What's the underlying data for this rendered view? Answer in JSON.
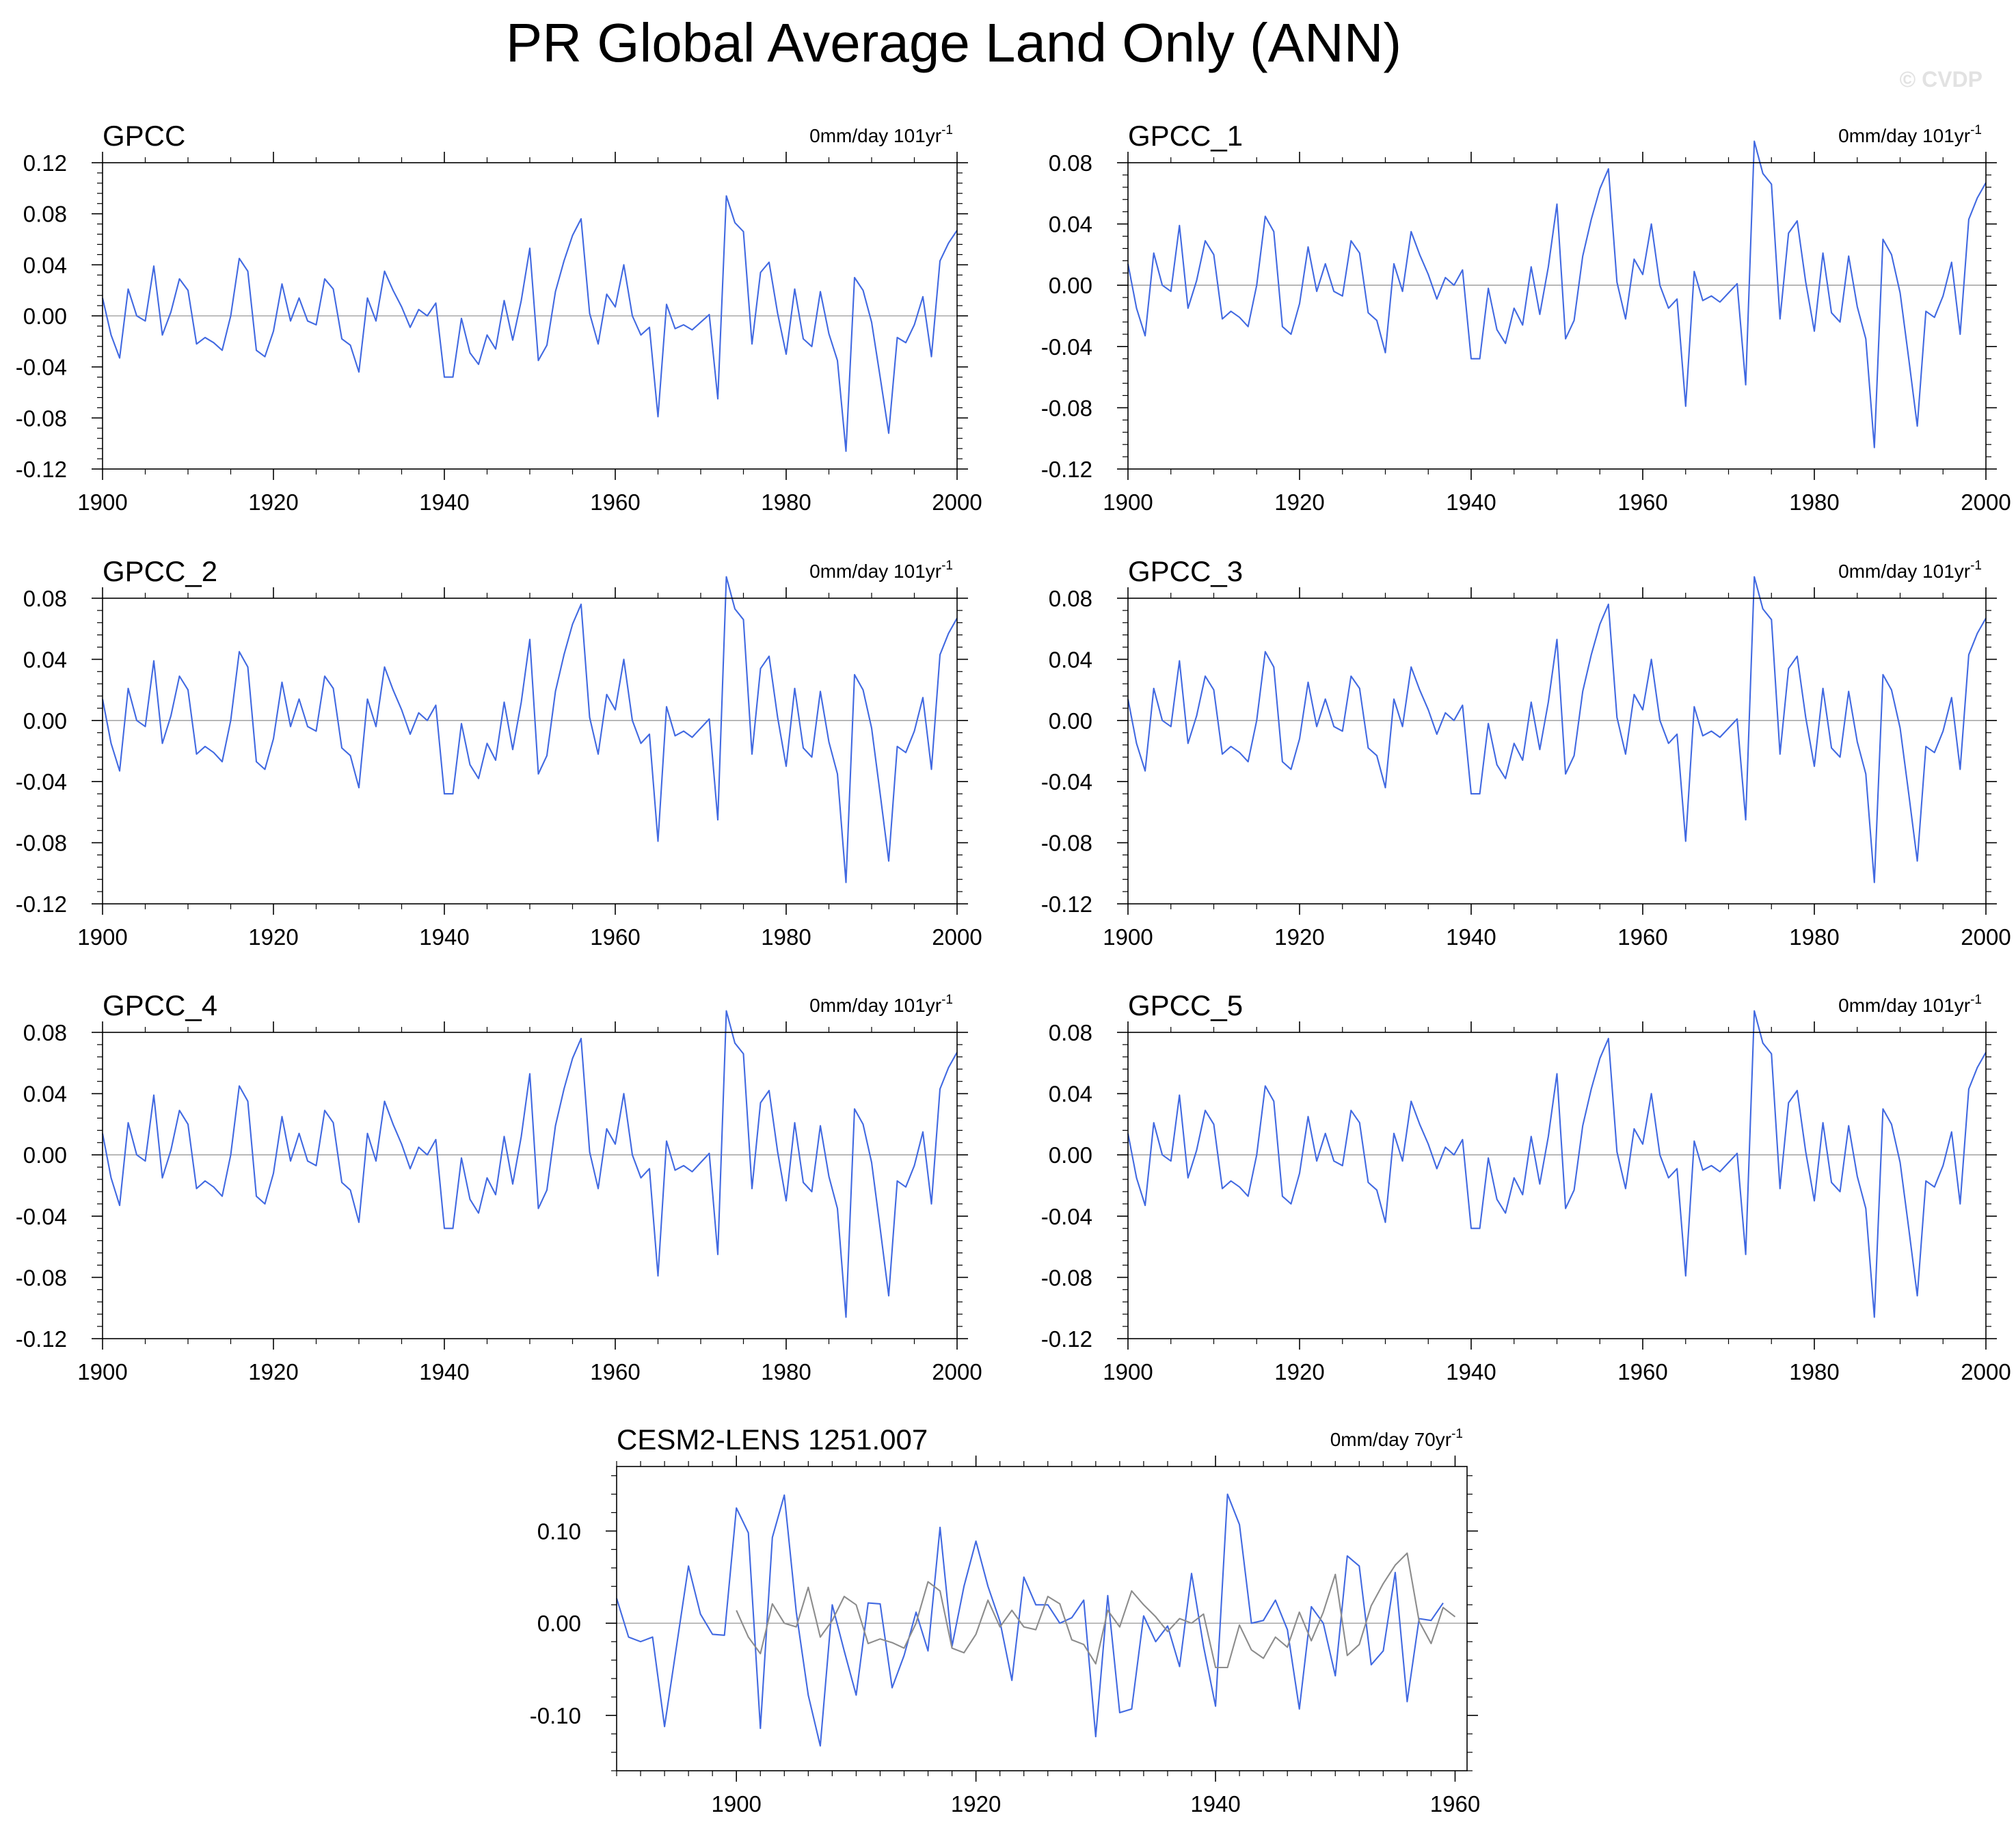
{
  "figure": {
    "title": "PR Global Average Land Only (ANN)",
    "watermark": "© CVDP",
    "colors": {
      "primary_series": "#4169e1",
      "secondary_series": "#8c8c8c",
      "zero_line": "#a8a8a8"
    }
  },
  "chart_data": [
    {
      "type": "line",
      "title": "GPCC",
      "trend_label": "0mm/day 101yr",
      "trend_label_superscript": "-1",
      "xlim": [
        1900,
        2000
      ],
      "ylim": [
        -0.12,
        0.12
      ],
      "x_ticks": [
        1900,
        1920,
        1940,
        1960,
        1980,
        2000
      ],
      "y_ticks": [
        -0.12,
        -0.08,
        -0.04,
        0.0,
        0.04,
        0.08,
        0.12
      ],
      "y_tick_labels": [
        "-0.12",
        "-0.08",
        "-0.04",
        "0.00",
        "0.04",
        "0.08",
        "0.12"
      ],
      "series": [
        {
          "x_start": 1900,
          "values": [
            0.014,
            -0.015,
            -0.033,
            0.021,
            0.0,
            -0.004,
            0.039,
            -0.015,
            0.003,
            0.029,
            0.02,
            -0.022,
            -0.017,
            -0.021,
            -0.027,
            0.0,
            0.045,
            0.035,
            -0.027,
            -0.032,
            -0.012,
            0.025,
            -0.004,
            0.014,
            -0.004,
            -0.007,
            0.029,
            0.021,
            -0.018,
            -0.023,
            -0.044,
            0.014,
            -0.004,
            0.035,
            0.02,
            0.007,
            -0.009,
            0.005,
            0.0,
            0.01,
            -0.048,
            -0.048,
            -0.002,
            -0.029,
            -0.038,
            -0.015,
            -0.026,
            0.012,
            -0.019,
            0.012,
            0.053,
            -0.035,
            -0.023,
            0.019,
            0.043,
            0.063,
            0.076,
            0.002,
            -0.022,
            0.017,
            0.007,
            0.04,
            0.0,
            -0.015,
            -0.009,
            -0.079,
            0.009,
            -0.01,
            -0.007,
            -0.011,
            -0.005,
            0.001,
            -0.065,
            0.094,
            0.073,
            0.066,
            -0.022,
            0.034,
            0.042,
            0.002,
            -0.03,
            0.021,
            -0.018,
            -0.024,
            0.019,
            -0.014,
            -0.035,
            -0.106,
            0.03,
            0.02,
            -0.005,
            -0.048,
            -0.092,
            -0.017,
            -0.021,
            -0.007,
            0.015,
            -0.032,
            0.043,
            0.057,
            0.067
          ]
        }
      ]
    },
    {
      "type": "line",
      "title": "GPCC_1",
      "trend_label": "0mm/day 101yr",
      "trend_label_superscript": "-1",
      "xlim": [
        1900,
        2000
      ],
      "ylim": [
        -0.12,
        0.08
      ],
      "x_ticks": [
        1900,
        1920,
        1940,
        1960,
        1980,
        2000
      ],
      "y_ticks": [
        -0.12,
        -0.08,
        -0.04,
        0.0,
        0.04,
        0.08
      ],
      "y_tick_labels": [
        "-0.12",
        "-0.08",
        "-0.04",
        "0.00",
        "0.04",
        "0.08"
      ],
      "series": [
        {
          "x_start": 1900,
          "values": [
            0.014,
            -0.015,
            -0.033,
            0.021,
            0.0,
            -0.004,
            0.039,
            -0.015,
            0.003,
            0.029,
            0.02,
            -0.022,
            -0.017,
            -0.021,
            -0.027,
            0.0,
            0.045,
            0.035,
            -0.027,
            -0.032,
            -0.012,
            0.025,
            -0.004,
            0.014,
            -0.004,
            -0.007,
            0.029,
            0.021,
            -0.018,
            -0.023,
            -0.044,
            0.014,
            -0.004,
            0.035,
            0.02,
            0.007,
            -0.009,
            0.005,
            0.0,
            0.01,
            -0.048,
            -0.048,
            -0.002,
            -0.029,
            -0.038,
            -0.015,
            -0.026,
            0.012,
            -0.019,
            0.012,
            0.053,
            -0.035,
            -0.023,
            0.019,
            0.043,
            0.063,
            0.076,
            0.002,
            -0.022,
            0.017,
            0.007,
            0.04,
            0.0,
            -0.015,
            -0.009,
            -0.079,
            0.009,
            -0.01,
            -0.007,
            -0.011,
            -0.005,
            0.001,
            -0.065,
            0.094,
            0.073,
            0.066,
            -0.022,
            0.034,
            0.042,
            0.002,
            -0.03,
            0.021,
            -0.018,
            -0.024,
            0.019,
            -0.014,
            -0.035,
            -0.106,
            0.03,
            0.02,
            -0.005,
            -0.048,
            -0.092,
            -0.017,
            -0.021,
            -0.007,
            0.015,
            -0.032,
            0.043,
            0.057,
            0.067
          ]
        }
      ]
    },
    {
      "type": "line",
      "title": "GPCC_2",
      "trend_label": "0mm/day 101yr",
      "trend_label_superscript": "-1",
      "xlim": [
        1900,
        2000
      ],
      "ylim": [
        -0.12,
        0.08
      ],
      "x_ticks": [
        1900,
        1920,
        1940,
        1960,
        1980,
        2000
      ],
      "y_ticks": [
        -0.12,
        -0.08,
        -0.04,
        0.0,
        0.04,
        0.08
      ],
      "y_tick_labels": [
        "-0.12",
        "-0.08",
        "-0.04",
        "0.00",
        "0.04",
        "0.08"
      ],
      "series": [
        {
          "x_start": 1900,
          "values": [
            0.014,
            -0.015,
            -0.033,
            0.021,
            0.0,
            -0.004,
            0.039,
            -0.015,
            0.003,
            0.029,
            0.02,
            -0.022,
            -0.017,
            -0.021,
            -0.027,
            0.0,
            0.045,
            0.035,
            -0.027,
            -0.032,
            -0.012,
            0.025,
            -0.004,
            0.014,
            -0.004,
            -0.007,
            0.029,
            0.021,
            -0.018,
            -0.023,
            -0.044,
            0.014,
            -0.004,
            0.035,
            0.02,
            0.007,
            -0.009,
            0.005,
            0.0,
            0.01,
            -0.048,
            -0.048,
            -0.002,
            -0.029,
            -0.038,
            -0.015,
            -0.026,
            0.012,
            -0.019,
            0.012,
            0.053,
            -0.035,
            -0.023,
            0.019,
            0.043,
            0.063,
            0.076,
            0.002,
            -0.022,
            0.017,
            0.007,
            0.04,
            0.0,
            -0.015,
            -0.009,
            -0.079,
            0.009,
            -0.01,
            -0.007,
            -0.011,
            -0.005,
            0.001,
            -0.065,
            0.094,
            0.073,
            0.066,
            -0.022,
            0.034,
            0.042,
            0.002,
            -0.03,
            0.021,
            -0.018,
            -0.024,
            0.019,
            -0.014,
            -0.035,
            -0.106,
            0.03,
            0.02,
            -0.005,
            -0.048,
            -0.092,
            -0.017,
            -0.021,
            -0.007,
            0.015,
            -0.032,
            0.043,
            0.057,
            0.067
          ]
        }
      ]
    },
    {
      "type": "line",
      "title": "GPCC_3",
      "trend_label": "0mm/day 101yr",
      "trend_label_superscript": "-1",
      "xlim": [
        1900,
        2000
      ],
      "ylim": [
        -0.12,
        0.08
      ],
      "x_ticks": [
        1900,
        1920,
        1940,
        1960,
        1980,
        2000
      ],
      "y_ticks": [
        -0.12,
        -0.08,
        -0.04,
        0.0,
        0.04,
        0.08
      ],
      "y_tick_labels": [
        "-0.12",
        "-0.08",
        "-0.04",
        "0.00",
        "0.04",
        "0.08"
      ],
      "series": [
        {
          "x_start": 1900,
          "values": [
            0.014,
            -0.015,
            -0.033,
            0.021,
            0.0,
            -0.004,
            0.039,
            -0.015,
            0.003,
            0.029,
            0.02,
            -0.022,
            -0.017,
            -0.021,
            -0.027,
            0.0,
            0.045,
            0.035,
            -0.027,
            -0.032,
            -0.012,
            0.025,
            -0.004,
            0.014,
            -0.004,
            -0.007,
            0.029,
            0.021,
            -0.018,
            -0.023,
            -0.044,
            0.014,
            -0.004,
            0.035,
            0.02,
            0.007,
            -0.009,
            0.005,
            0.0,
            0.01,
            -0.048,
            -0.048,
            -0.002,
            -0.029,
            -0.038,
            -0.015,
            -0.026,
            0.012,
            -0.019,
            0.012,
            0.053,
            -0.035,
            -0.023,
            0.019,
            0.043,
            0.063,
            0.076,
            0.002,
            -0.022,
            0.017,
            0.007,
            0.04,
            0.0,
            -0.015,
            -0.009,
            -0.079,
            0.009,
            -0.01,
            -0.007,
            -0.011,
            -0.005,
            0.001,
            -0.065,
            0.094,
            0.073,
            0.066,
            -0.022,
            0.034,
            0.042,
            0.002,
            -0.03,
            0.021,
            -0.018,
            -0.024,
            0.019,
            -0.014,
            -0.035,
            -0.106,
            0.03,
            0.02,
            -0.005,
            -0.048,
            -0.092,
            -0.017,
            -0.021,
            -0.007,
            0.015,
            -0.032,
            0.043,
            0.057,
            0.067
          ]
        }
      ]
    },
    {
      "type": "line",
      "title": "GPCC_4",
      "trend_label": "0mm/day 101yr",
      "trend_label_superscript": "-1",
      "xlim": [
        1900,
        2000
      ],
      "ylim": [
        -0.12,
        0.08
      ],
      "x_ticks": [
        1900,
        1920,
        1940,
        1960,
        1980,
        2000
      ],
      "y_ticks": [
        -0.12,
        -0.08,
        -0.04,
        0.0,
        0.04,
        0.08
      ],
      "y_tick_labels": [
        "-0.12",
        "-0.08",
        "-0.04",
        "0.00",
        "0.04",
        "0.08"
      ],
      "series": [
        {
          "x_start": 1900,
          "values": [
            0.014,
            -0.015,
            -0.033,
            0.021,
            0.0,
            -0.004,
            0.039,
            -0.015,
            0.003,
            0.029,
            0.02,
            -0.022,
            -0.017,
            -0.021,
            -0.027,
            0.0,
            0.045,
            0.035,
            -0.027,
            -0.032,
            -0.012,
            0.025,
            -0.004,
            0.014,
            -0.004,
            -0.007,
            0.029,
            0.021,
            -0.018,
            -0.023,
            -0.044,
            0.014,
            -0.004,
            0.035,
            0.02,
            0.007,
            -0.009,
            0.005,
            0.0,
            0.01,
            -0.048,
            -0.048,
            -0.002,
            -0.029,
            -0.038,
            -0.015,
            -0.026,
            0.012,
            -0.019,
            0.012,
            0.053,
            -0.035,
            -0.023,
            0.019,
            0.043,
            0.063,
            0.076,
            0.002,
            -0.022,
            0.017,
            0.007,
            0.04,
            0.0,
            -0.015,
            -0.009,
            -0.079,
            0.009,
            -0.01,
            -0.007,
            -0.011,
            -0.005,
            0.001,
            -0.065,
            0.094,
            0.073,
            0.066,
            -0.022,
            0.034,
            0.042,
            0.002,
            -0.03,
            0.021,
            -0.018,
            -0.024,
            0.019,
            -0.014,
            -0.035,
            -0.106,
            0.03,
            0.02,
            -0.005,
            -0.048,
            -0.092,
            -0.017,
            -0.021,
            -0.007,
            0.015,
            -0.032,
            0.043,
            0.057,
            0.067
          ]
        }
      ]
    },
    {
      "type": "line",
      "title": "GPCC_5",
      "trend_label": "0mm/day 101yr",
      "trend_label_superscript": "-1",
      "xlim": [
        1900,
        2000
      ],
      "ylim": [
        -0.12,
        0.08
      ],
      "x_ticks": [
        1900,
        1920,
        1940,
        1960,
        1980,
        2000
      ],
      "y_ticks": [
        -0.12,
        -0.08,
        -0.04,
        0.0,
        0.04,
        0.08
      ],
      "y_tick_labels": [
        "-0.12",
        "-0.08",
        "-0.04",
        "0.00",
        "0.04",
        "0.08"
      ],
      "series": [
        {
          "x_start": 1900,
          "values": [
            0.014,
            -0.015,
            -0.033,
            0.021,
            0.0,
            -0.004,
            0.039,
            -0.015,
            0.003,
            0.029,
            0.02,
            -0.022,
            -0.017,
            -0.021,
            -0.027,
            0.0,
            0.045,
            0.035,
            -0.027,
            -0.032,
            -0.012,
            0.025,
            -0.004,
            0.014,
            -0.004,
            -0.007,
            0.029,
            0.021,
            -0.018,
            -0.023,
            -0.044,
            0.014,
            -0.004,
            0.035,
            0.02,
            0.007,
            -0.009,
            0.005,
            0.0,
            0.01,
            -0.048,
            -0.048,
            -0.002,
            -0.029,
            -0.038,
            -0.015,
            -0.026,
            0.012,
            -0.019,
            0.012,
            0.053,
            -0.035,
            -0.023,
            0.019,
            0.043,
            0.063,
            0.076,
            0.002,
            -0.022,
            0.017,
            0.007,
            0.04,
            0.0,
            -0.015,
            -0.009,
            -0.079,
            0.009,
            -0.01,
            -0.007,
            -0.011,
            -0.005,
            0.001,
            -0.065,
            0.094,
            0.073,
            0.066,
            -0.022,
            0.034,
            0.042,
            0.002,
            -0.03,
            0.021,
            -0.018,
            -0.024,
            0.019,
            -0.014,
            -0.035,
            -0.106,
            0.03,
            0.02,
            -0.005,
            -0.048,
            -0.092,
            -0.017,
            -0.021,
            -0.007,
            0.015,
            -0.032,
            0.043,
            0.057,
            0.067
          ]
        }
      ]
    },
    {
      "type": "line",
      "title": "CESM2-LENS 1251.007",
      "trend_label": "0mm/day 70yr",
      "trend_label_superscript": "-1",
      "xlim": [
        1890,
        1961
      ],
      "ylim": [
        -0.16,
        0.17
      ],
      "x_ticks": [
        1900,
        1920,
        1940,
        1960
      ],
      "y_ticks": [
        -0.1,
        0.0,
        0.1
      ],
      "y_tick_labels": [
        "-0.10",
        "0.00",
        "0.10"
      ],
      "series": [
        {
          "x_start": 1890,
          "values": [
            0.027,
            -0.015,
            -0.02,
            -0.015,
            -0.112,
            -0.025,
            0.062,
            0.01,
            -0.012,
            -0.013,
            0.125,
            0.098,
            -0.114,
            0.093,
            0.139,
            0.012,
            -0.078,
            -0.133,
            0.02,
            -0.03,
            -0.078,
            0.022,
            0.021,
            -0.07,
            -0.035,
            0.012,
            -0.03,
            0.104,
            -0.025,
            0.04,
            0.089,
            0.04,
            0.002,
            -0.062,
            0.05,
            0.02,
            0.02,
            0.0,
            0.006,
            0.025,
            -0.123,
            0.03,
            -0.097,
            -0.093,
            0.008,
            -0.02,
            -0.003,
            -0.047,
            0.054,
            -0.025,
            -0.09,
            0.14,
            0.107,
            0.0,
            0.003,
            0.025,
            -0.007,
            -0.093,
            0.018,
            0.0,
            -0.057,
            0.073,
            0.062,
            -0.045,
            -0.03,
            0.055,
            -0.085,
            0.005,
            0.003,
            0.022
          ]
        },
        {
          "x_start": 1900,
          "values": [
            0.014,
            -0.015,
            -0.033,
            0.021,
            0.0,
            -0.004,
            0.039,
            -0.015,
            0.003,
            0.029,
            0.02,
            -0.022,
            -0.017,
            -0.021,
            -0.027,
            0.0,
            0.045,
            0.035,
            -0.027,
            -0.032,
            -0.012,
            0.025,
            -0.004,
            0.014,
            -0.004,
            -0.007,
            0.029,
            0.021,
            -0.018,
            -0.023,
            -0.044,
            0.014,
            -0.004,
            0.035,
            0.02,
            0.007,
            -0.009,
            0.005,
            0.0,
            0.01,
            -0.048,
            -0.048,
            -0.002,
            -0.029,
            -0.038,
            -0.015,
            -0.026,
            0.012,
            -0.019,
            0.012,
            0.053,
            -0.035,
            -0.023,
            0.019,
            0.043,
            0.063,
            0.076,
            0.002,
            -0.022,
            0.017,
            0.007
          ]
        }
      ]
    }
  ]
}
